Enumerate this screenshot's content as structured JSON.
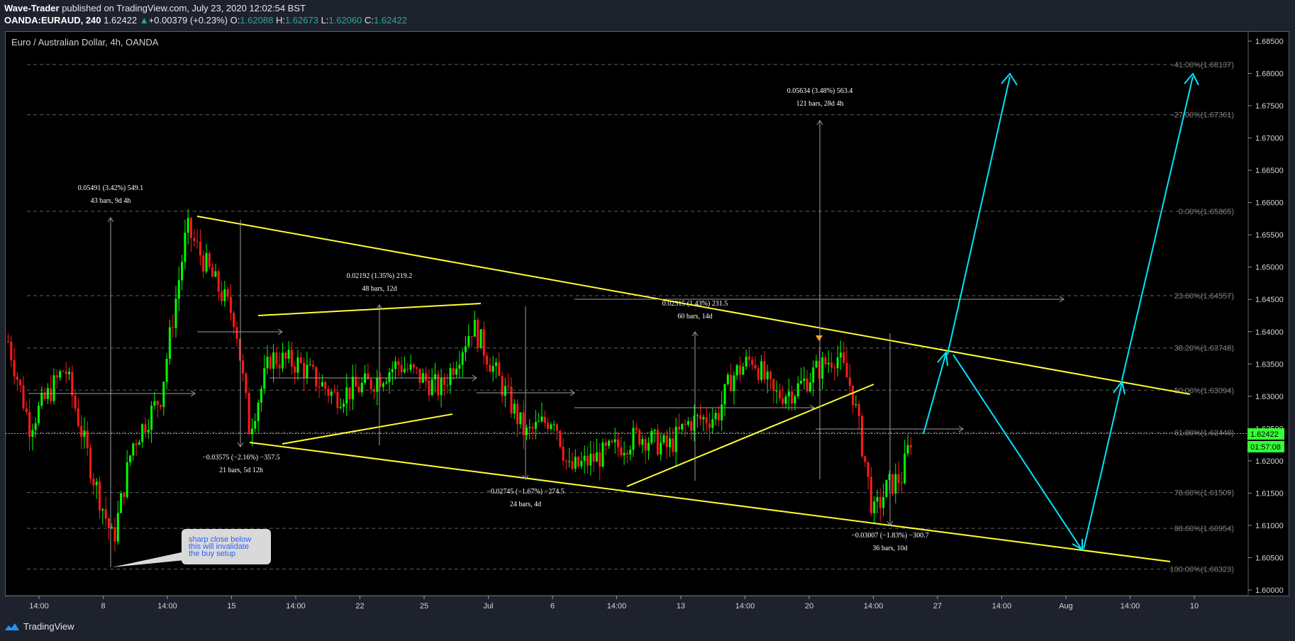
{
  "header": {
    "publisher": "Wave-Trader",
    "published_text": "published on TradingView.com, July 23, 2020 12:02:54 BST",
    "symbol": "OANDA:EURAUD, 240",
    "last": "1.62422",
    "change_icon": "triangle-up-icon",
    "change": "+0.00379 (+0.23%)",
    "o_label": "O:",
    "o": "1.62088",
    "h_label": "H:",
    "h": "1.62673",
    "l_label": "L:",
    "l": "1.62060",
    "c_label": "C:",
    "c": "1.62422"
  },
  "footer": {
    "brand": "TradingView",
    "brand_icon": "tradingview-logo-icon"
  },
  "colors": {
    "up": "#00ff00",
    "down": "#ff1a1a",
    "trendline": "#ffff33",
    "projection": "#00e5ff",
    "fib": "#808080",
    "price_tag": "#33ff33"
  },
  "chart_data": {
    "type": "candlestick",
    "title": "Euro / Australian Dollar, 4h, OANDA",
    "y_ticks": [
      "1.68500",
      "1.68000",
      "1.67500",
      "1.67000",
      "1.66500",
      "1.66000",
      "1.65500",
      "1.65000",
      "1.64500",
      "1.64000",
      "1.63500",
      "1.63000",
      "1.62500",
      "1.62000",
      "1.61500",
      "1.61000",
      "1.60500",
      "1.60000"
    ],
    "x_ticks": [
      "14:00",
      "8",
      "14:00",
      "15",
      "14:00",
      "22",
      "25",
      "Jul",
      "6",
      "14:00",
      "13",
      "14:00",
      "20",
      "14:00",
      "27",
      "14:00",
      "Aug",
      "14:00",
      "10"
    ],
    "ylim": [
      1.5985,
      1.6873
    ],
    "last_price": {
      "value": 1.62422,
      "label": "1.62422",
      "countdown": "01:57:08"
    },
    "fib_levels": [
      {
        "value": 1.68137,
        "label": "-41.00%(1.68137)"
      },
      {
        "value": 1.67361,
        "label": "-27.00%(1.67361)"
      },
      {
        "value": 1.65865,
        "label": "0.00%(1.65865)"
      },
      {
        "value": 1.64557,
        "label": "23.60%(1.64557)"
      },
      {
        "value": 1.63748,
        "label": "38.20%(1.63748)"
      },
      {
        "value": 1.63094,
        "label": "50.00%(1.63094)"
      },
      {
        "value": 1.6244,
        "label": "61.80%(1.62440)"
      },
      {
        "value": 1.61509,
        "label": "78.60%(1.61509)"
      },
      {
        "value": 1.60954,
        "label": "88.60%(1.60954)"
      },
      {
        "value": 1.60323,
        "label": "100.00%(1.60323)"
      }
    ],
    "measurements": [
      {
        "line1": "0.05491 (3.42%) 549.1",
        "line2": "43 bars, 9d 4h"
      },
      {
        "line1": "−0.03575 (−2.16%) −357.5",
        "line2": "21 bars, 5d 12h"
      },
      {
        "line1": "0.02192 (1.35%) 219.2",
        "line2": "48 bars, 12d"
      },
      {
        "line1": "−0.02745 (−1.67%) −274.5",
        "line2": "24 bars, 4d"
      },
      {
        "line1": "0.02315 (1.43%) 231.5",
        "line2": "60 bars, 14d"
      },
      {
        "line1": "0.05634 (3.48%) 563.4",
        "line2": "121 bars, 28d 4h"
      },
      {
        "line1": "−0.03007 (−1.83%) −300.7",
        "line2": "36 bars, 10d"
      }
    ],
    "callout": {
      "lines": [
        "sharp close below",
        "this will invalidate",
        "the buy setup"
      ]
    }
  }
}
